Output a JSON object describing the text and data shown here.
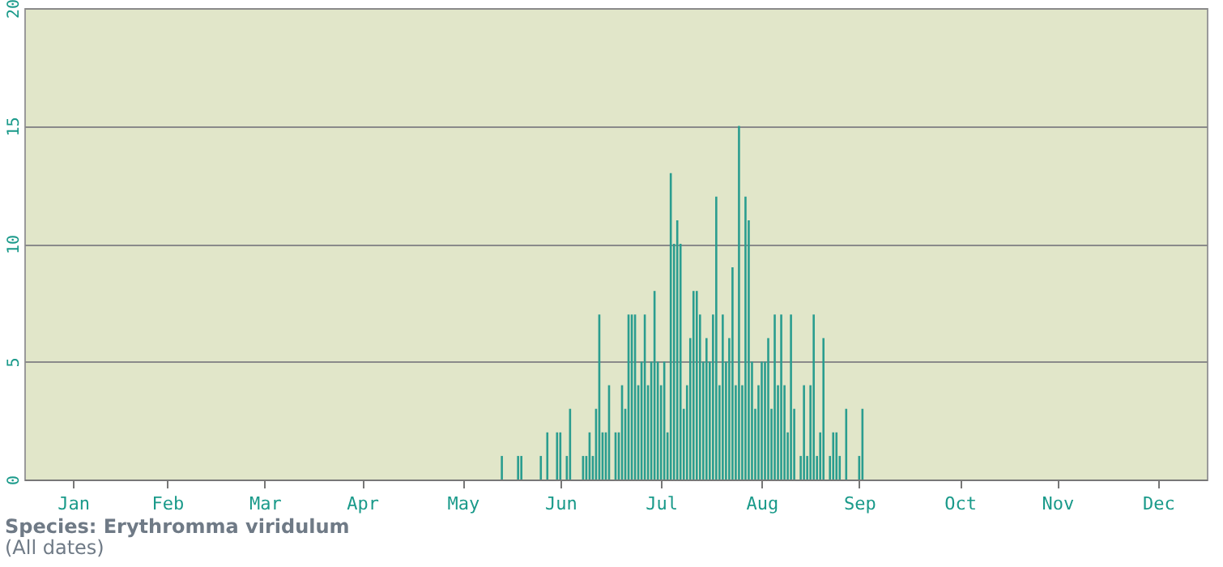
{
  "chart_data": {
    "type": "bar",
    "title": "Species: Erythromma viridulum",
    "subtitle": "(All dates)",
    "x": [
      "--05-28",
      "--06-02",
      "--06-03",
      "--06-09",
      "--06-11",
      "--06-14",
      "--06-15",
      "--06-17",
      "--06-18",
      "--06-22",
      "--06-23",
      "--06-24",
      "--06-25",
      "--06-26",
      "--06-27",
      "--06-28",
      "--06-29",
      "--06-30",
      "--07-02",
      "--07-03",
      "--07-04",
      "--07-05",
      "--07-06",
      "--07-07",
      "--07-08",
      "--07-09",
      "--07-10",
      "--07-11",
      "--07-12",
      "--07-13",
      "--07-14",
      "--07-15",
      "--07-16",
      "--07-17",
      "--07-18",
      "--07-19",
      "--07-20",
      "--07-21",
      "--07-22",
      "--07-23",
      "--07-24",
      "--07-25",
      "--07-26",
      "--07-27",
      "--07-28",
      "--07-29",
      "--07-30",
      "--07-31",
      "--08-01",
      "--08-02",
      "--08-03",
      "--08-04",
      "--08-05",
      "--08-06",
      "--08-07",
      "--08-08",
      "--08-09",
      "--08-10",
      "--08-11",
      "--08-12",
      "--08-13",
      "--08-14",
      "--08-15",
      "--08-16",
      "--08-17",
      "--08-18",
      "--08-19",
      "--08-20",
      "--08-21",
      "--08-22",
      "--08-23",
      "--08-24",
      "--08-25",
      "--08-26",
      "--08-28",
      "--08-29",
      "--08-30",
      "--08-31",
      "--09-01",
      "--09-02",
      "--09-03",
      "--09-04",
      "--09-06",
      "--09-07",
      "--09-08",
      "--09-09",
      "--09-11",
      "--09-15",
      "--09-16"
    ],
    "values": [
      1,
      1,
      1,
      1,
      2,
      2,
      2,
      1,
      3,
      1,
      1,
      2,
      1,
      3,
      7,
      2,
      2,
      4,
      2,
      2,
      4,
      3,
      7,
      7,
      7,
      4,
      5,
      7,
      4,
      5,
      8,
      5,
      4,
      5,
      2,
      13,
      10,
      11,
      10,
      3,
      4,
      6,
      8,
      8,
      7,
      5,
      6,
      5,
      7,
      12,
      4,
      7,
      5,
      6,
      9,
      4,
      15,
      4,
      12,
      11,
      5,
      3,
      4,
      5,
      5,
      6,
      3,
      7,
      4,
      7,
      4,
      2,
      7,
      3,
      1,
      4,
      1,
      4,
      7,
      1,
      2,
      6,
      1,
      2,
      2,
      1,
      3,
      1,
      3
    ],
    "color": "#2a9d8f",
    "xlim": [
      "--01-01",
      "--12-31"
    ],
    "xticks": [
      {
        "value": "--01-16",
        "label": "Jan"
      },
      {
        "value": "--02-14",
        "label": "Feb"
      },
      {
        "value": "--03-16",
        "label": "Mar"
      },
      {
        "value": "--04-15",
        "label": "Apr"
      },
      {
        "value": "--05-16",
        "label": "May"
      },
      {
        "value": "--06-15",
        "label": "Jun"
      },
      {
        "value": "--07-16",
        "label": "Jul"
      },
      {
        "value": "--08-16",
        "label": "Aug"
      },
      {
        "value": "--09-15",
        "label": "Sep"
      },
      {
        "value": "--10-16",
        "label": "Oct"
      },
      {
        "value": "--11-15",
        "label": "Nov"
      },
      {
        "value": "--12-16",
        "label": "Dec"
      }
    ],
    "ylim": [
      0,
      20
    ],
    "yticks": [
      0,
      5,
      10,
      15,
      20
    ],
    "grid": "y"
  }
}
